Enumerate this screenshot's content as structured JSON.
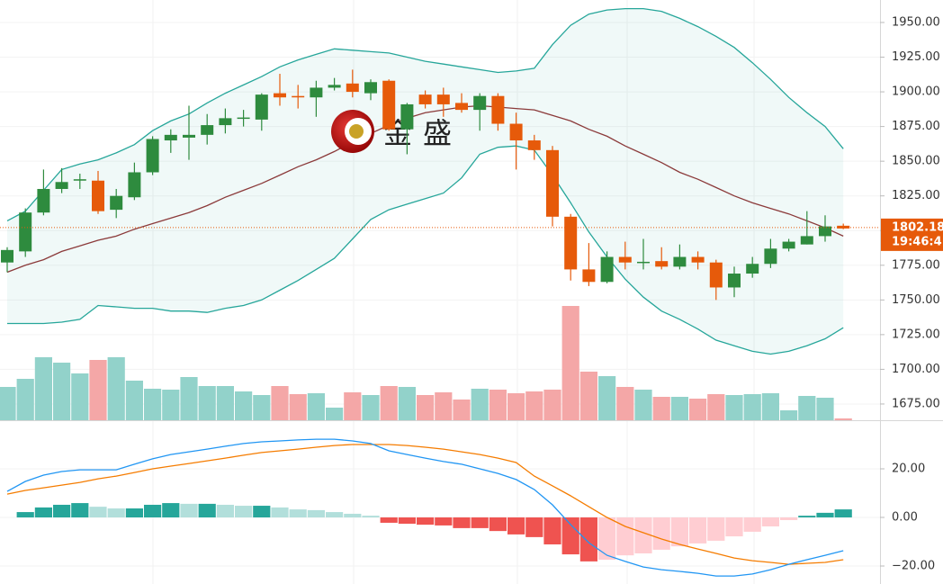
{
  "chart_data": {
    "type": "candlestick",
    "watermark": "金盛",
    "open": [
      1777,
      1785,
      1813,
      1830,
      1836,
      1836,
      1815,
      1824,
      1842,
      1865,
      1867,
      1869,
      1876,
      1881,
      1880,
      1899,
      1897,
      1896,
      1903,
      1906,
      1899,
      1908,
      1873,
      1898,
      1898,
      1892,
      1887,
      1897,
      1877,
      1865,
      1858,
      1810,
      1772,
      1763,
      1781,
      1777,
      1778,
      1774,
      1781,
      1777,
      1759,
      1769,
      1776,
      1787,
      1790,
      1796,
      1803.5
    ],
    "high": [
      1788,
      1816,
      1844,
      1845,
      1841,
      1843,
      1830,
      1849,
      1868,
      1873,
      1890,
      1884,
      1888,
      1887,
      1899,
      1913,
      1905,
      1908,
      1910,
      1916,
      1909,
      1909,
      1892,
      1901,
      1903,
      1899,
      1899,
      1899,
      1885,
      1869,
      1861,
      1812,
      1791,
      1785,
      1792,
      1794,
      1788,
      1790,
      1785,
      1779,
      1774,
      1781,
      1794,
      1794,
      1814,
      1811,
      1805
    ],
    "low": [
      1770,
      1781,
      1811,
      1827,
      1830,
      1812,
      1809,
      1822,
      1840,
      1856,
      1851,
      1862,
      1870,
      1875,
      1872,
      1890,
      1888,
      1882,
      1901,
      1896,
      1894,
      1872,
      1855,
      1888,
      1882,
      1885,
      1872,
      1872,
      1844,
      1851,
      1803,
      1764,
      1760,
      1762,
      1772,
      1772,
      1772,
      1772,
      1772,
      1750,
      1752,
      1766,
      1773,
      1785,
      1790,
      1792,
      1801
    ],
    "close": [
      1786,
      1813,
      1830,
      1835,
      1837,
      1814,
      1825,
      1842,
      1866,
      1869,
      1869,
      1876,
      1881,
      1881.5,
      1898,
      1896,
      1896,
      1903,
      1905,
      1900,
      1907,
      1873,
      1891,
      1891,
      1891,
      1887,
      1897,
      1877,
      1865,
      1858,
      1810,
      1772,
      1763,
      1781,
      1777,
      1777.5,
      1774,
      1781,
      1777,
      1759,
      1769,
      1776,
      1787,
      1792,
      1796,
      1803,
      1801.5
    ],
    "bb_upper": [
      1807,
      1814,
      1829,
      1844,
      1848,
      1851,
      1856,
      1862,
      1872,
      1879,
      1884,
      1892,
      1899,
      1905,
      1911,
      1918,
      1923,
      1927,
      1931,
      1930,
      1929,
      1928,
      1925,
      1922,
      1920,
      1918,
      1916,
      1914,
      1915,
      1917,
      1934,
      1948,
      1956,
      1959,
      1960,
      1960,
      1958,
      1953,
      1947,
      1940,
      1932,
      1921,
      1909,
      1896,
      1885,
      1875,
      1859
    ],
    "bb_middle": [
      1770,
      1775,
      1779,
      1785,
      1789,
      1793,
      1796,
      1801,
      1805,
      1809,
      1813,
      1818,
      1824,
      1829,
      1834,
      1840,
      1846,
      1851,
      1857,
      1864,
      1870,
      1876,
      1881,
      1885,
      1887,
      1889,
      1890,
      1889,
      1888,
      1887,
      1883,
      1879,
      1873,
      1868,
      1861,
      1855,
      1849,
      1842,
      1837,
      1831,
      1825,
      1820,
      1816,
      1812,
      1807,
      1802,
      1796
    ],
    "bb_lower": [
      1733,
      1733,
      1733,
      1734,
      1736,
      1746,
      1745,
      1744,
      1744,
      1742,
      1742,
      1741,
      1744,
      1746,
      1750,
      1757,
      1764,
      1772,
      1780,
      1794,
      1808,
      1815,
      1819,
      1823,
      1827,
      1838,
      1855,
      1860,
      1861,
      1858,
      1840,
      1820,
      1799,
      1781,
      1765,
      1752,
      1742,
      1736,
      1729,
      1721,
      1717,
      1713,
      1711,
      1713,
      1717,
      1722,
      1730
    ],
    "volume": [
      37,
      46,
      70,
      64,
      52,
      67,
      70,
      44,
      35,
      34,
      48,
      38,
      38,
      32,
      28,
      38,
      29,
      30,
      14,
      31,
      28,
      38,
      37,
      28,
      31,
      23,
      35,
      34,
      30,
      32,
      34,
      127,
      54,
      49,
      37,
      34,
      26,
      26,
      24,
      29,
      28,
      29,
      30,
      11,
      27,
      25,
      2
    ],
    "macd": [
      10.7,
      14.8,
      17.4,
      18.9,
      19.6,
      19.6,
      19.6,
      21.9,
      24.1,
      25.9,
      27.0,
      28.1,
      29.3,
      30.4,
      31.1,
      31.5,
      31.9,
      32.2,
      32.2,
      31.5,
      30.4,
      27.4,
      25.9,
      24.4,
      23.0,
      21.9,
      20.0,
      18.1,
      15.6,
      11.5,
      5.2,
      -3.0,
      -10.4,
      -15.6,
      -18.1,
      -20.4,
      -21.5,
      -22.2,
      -23.0,
      -24.1,
      -24.1,
      -23.3,
      -21.5,
      -19.3,
      -17.4,
      -15.6,
      -13.7
    ],
    "signal": [
      9.6,
      11.1,
      12.2,
      13.3,
      14.4,
      15.9,
      17.0,
      18.5,
      20.0,
      21.1,
      22.2,
      23.3,
      24.4,
      25.6,
      26.7,
      27.4,
      28.1,
      28.9,
      29.6,
      30.0,
      30.0,
      30.0,
      29.6,
      28.9,
      28.1,
      27.0,
      25.9,
      24.4,
      22.6,
      17.0,
      13.0,
      8.9,
      4.4,
      0,
      -3.7,
      -6.3,
      -8.9,
      -11.1,
      -13.0,
      -14.8,
      -16.7,
      -17.8,
      -18.5,
      -19.3,
      -18.9,
      -18.5,
      -17.4
    ],
    "histogram": [
      0,
      2.2,
      4.1,
      5.2,
      5.9,
      4.4,
      3.7,
      3.7,
      5.2,
      5.9,
      5.6,
      5.6,
      5.2,
      4.8,
      4.8,
      4.1,
      3.3,
      3.0,
      2.2,
      1.5,
      0.7,
      -2.2,
      -2.6,
      -3.0,
      -3.3,
      -4.4,
      -4.4,
      -5.6,
      -7.0,
      -8.1,
      -11.1,
      -15.2,
      -18.1,
      -17.4,
      -15.6,
      -14.8,
      -13.3,
      -11.9,
      -10.7,
      -9.6,
      -7.8,
      -5.9,
      -3.7,
      -1.1,
      0.7,
      1.9,
      3.3
    ],
    "ylim": [
      1663.3,
      1966.2
    ],
    "yticks": [
      {
        "value": 1950,
        "label": "1950.00"
      },
      {
        "value": 1925,
        "label": "1925.00"
      },
      {
        "value": 1900,
        "label": "1900.00"
      },
      {
        "value": 1875,
        "label": "1875.00"
      },
      {
        "value": 1850,
        "label": "1850.00"
      },
      {
        "value": 1825,
        "label": "1825.00"
      },
      {
        "value": 1800,
        "label": "1800.00"
      },
      {
        "value": 1775,
        "label": "1775.00"
      },
      {
        "value": 1750,
        "label": "1750.00"
      },
      {
        "value": 1725,
        "label": "1725.00"
      },
      {
        "value": 1700,
        "label": "1700.00"
      },
      {
        "value": 1675,
        "label": "1675.00"
      }
    ],
    "volume_ylim": [
      0,
      467
    ],
    "y2lim": [
      -27.4,
      40
    ],
    "y2ticks": [
      {
        "value": 20,
        "label": "20.00"
      },
      {
        "value": 0,
        "label": "0.00"
      },
      {
        "value": -20,
        "label": "−20.00"
      }
    ],
    "last_price": 1802.18,
    "countdown": "19:46:4",
    "grid": true,
    "colors": {
      "up": "#2e8b3e",
      "down": "#e65a0a",
      "band": "#26a69a",
      "band_fill": "rgba(38,166,154,0.07)",
      "middle": "#8b3a3a",
      "vol_up": "#92d2ca",
      "vol_down": "#f4a7a7",
      "macd": "#2196f3",
      "signal": "#f57c00",
      "hist_up_grow": "#26a69a",
      "hist_up_fall": "#b2dfdb",
      "hist_dn_fall": "#ef5350",
      "hist_dn_rise": "#ffcdd2",
      "tag": "#e65a0a"
    }
  }
}
